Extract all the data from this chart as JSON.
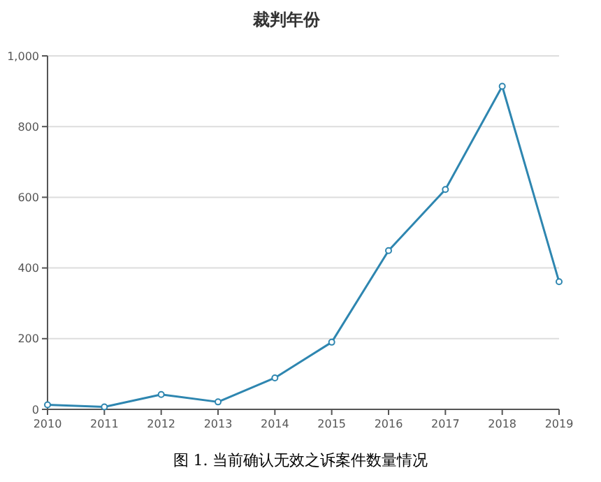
{
  "chart_data": {
    "type": "line",
    "title": "裁判年份",
    "x": [
      2010,
      2011,
      2012,
      2013,
      2014,
      2015,
      2016,
      2017,
      2018,
      2019
    ],
    "series": [
      {
        "color": "#2e86b0",
        "values": [
          13,
          7,
          42,
          21,
          89,
          190,
          449,
          622,
          914,
          361
        ]
      }
    ],
    "xlim": [
      2010,
      2019
    ],
    "xticks": [
      2010,
      2011,
      2012,
      2013,
      2014,
      2015,
      2016,
      2017,
      2018,
      2019
    ],
    "ylim": [
      0,
      1000
    ],
    "yticks": [
      0,
      200,
      400,
      600,
      800,
      {
        "value": 1000,
        "label": "1,000"
      }
    ],
    "grid": "y",
    "marker": "circle",
    "annotations": [
      "图 1. 当前确认无效之诉案件数量情况"
    ]
  }
}
